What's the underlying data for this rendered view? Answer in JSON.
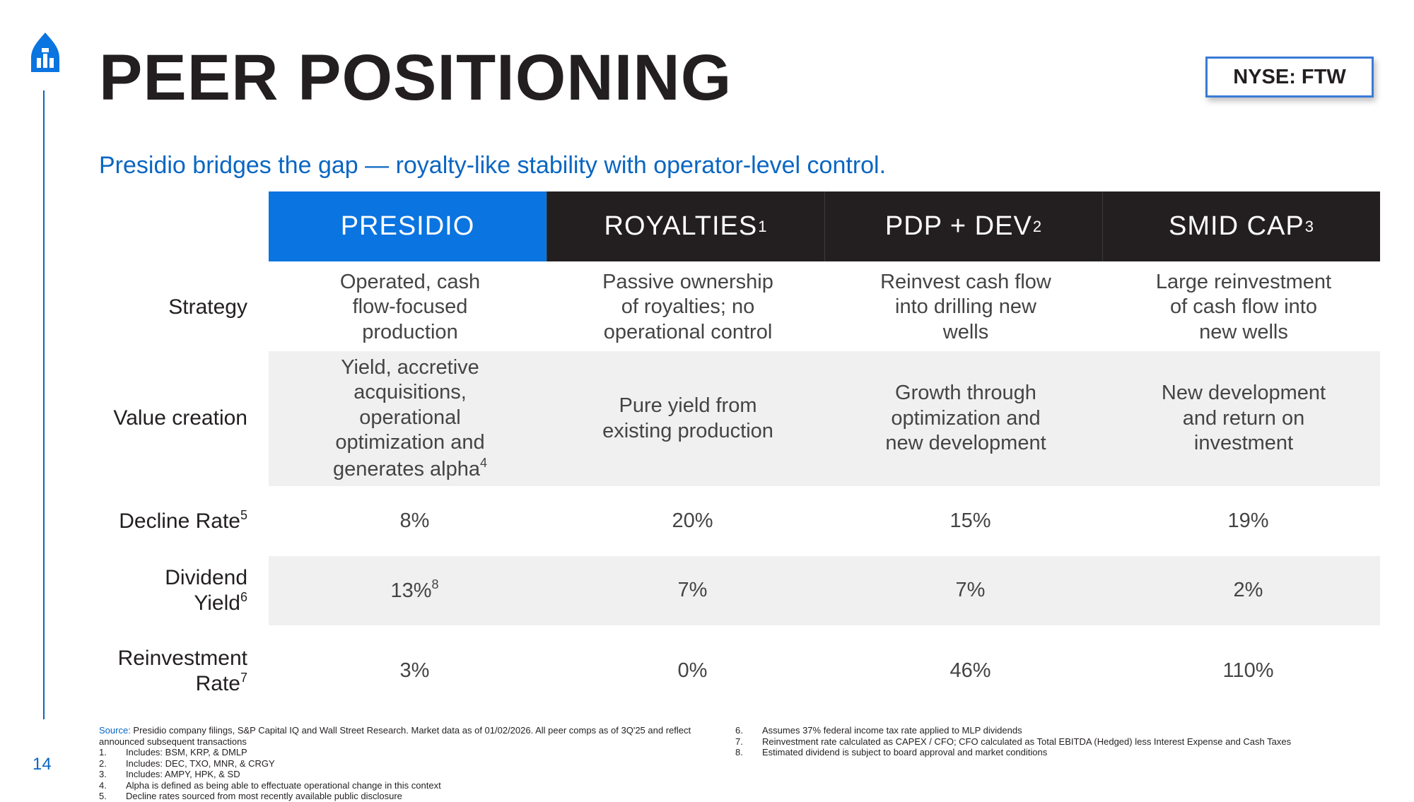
{
  "header": {
    "title": "PEER POSITIONING",
    "ticker": "NYSE: FTW",
    "subtitle": "Presidio bridges the gap — royalty-like stability with operator-level control.",
    "page_number": "14"
  },
  "columns": [
    {
      "label": "PRESIDIO",
      "sup": ""
    },
    {
      "label": "ROYALTIES",
      "sup": "1"
    },
    {
      "label": "PDP + DEV",
      "sup": "2"
    },
    {
      "label": "SMID CAP",
      "sup": "3"
    }
  ],
  "rows": {
    "strategy": {
      "label": "Strategy",
      "cells": [
        "Operated, cash\nflow-focused\nproduction",
        "Passive ownership\nof royalties; no\noperational control",
        "Reinvest cash flow\ninto drilling new\nwells",
        "Large reinvestment\nof cash flow into\nnew wells"
      ]
    },
    "value_creation": {
      "label": "Value creation",
      "cell0_text": "Yield, accretive\nacquisitions,\noperational\noptimization and\ngenerates alpha",
      "cell0_sup": "4",
      "cells": [
        "Pure yield from\nexisting production",
        "Growth through\noptimization and\nnew development",
        "New development\nand return on\ninvestment"
      ]
    },
    "decline_rate": {
      "label": "Decline Rate",
      "sup": "5",
      "cells": [
        "8%",
        "20%",
        "15%",
        "19%"
      ]
    },
    "dividend_yield": {
      "label_line1": "Dividend",
      "label_line2": "Yield",
      "sup": "6",
      "cell0_text": "13%",
      "cell0_sup": "8",
      "cells": [
        "7%",
        "7%",
        "2%"
      ]
    },
    "reinvestment_rate": {
      "label_line1": "Reinvestment",
      "label_line2": "Rate",
      "sup": "7",
      "cells": [
        "3%",
        "0%",
        "46%",
        "110%"
      ]
    }
  },
  "footnotes": {
    "source_label": "Source:",
    "source_text": " Presidio company filings, S&P Capital IQ and Wall Street Research. Market data as of 01/02/2026. All peer comps as of 3Q'25 and reflect announced subsequent transactions",
    "left": [
      {
        "n": "1.",
        "text": "Includes: BSM, KRP, & DMLP"
      },
      {
        "n": "2.",
        "text": "Includes: DEC, TXO, MNR, & CRGY"
      },
      {
        "n": "3.",
        "text": "Includes: AMPY, HPK, & SD"
      },
      {
        "n": "4.",
        "text": "Alpha is defined as being able to effectuate operational change in this context"
      },
      {
        "n": "5.",
        "text": "Decline rates sourced from most recently available public disclosure"
      }
    ],
    "right": [
      {
        "n": "6.",
        "text": "Assumes 37% federal income tax rate applied to MLP dividends"
      },
      {
        "n": "7.",
        "text": "Reinvestment rate calculated as CAPEX / CFO; CFO calculated as Total EBITDA (Hedged) less Interest Expense and Cash Taxes"
      },
      {
        "n": "8.",
        "text": "Estimated dividend is subject to board approval and market conditions"
      }
    ]
  },
  "colors": {
    "accent_blue": "#0a74e0",
    "header_dark": "#231f20",
    "band_gray": "#f0f0f0",
    "subtitle_blue": "#0a66c2"
  }
}
